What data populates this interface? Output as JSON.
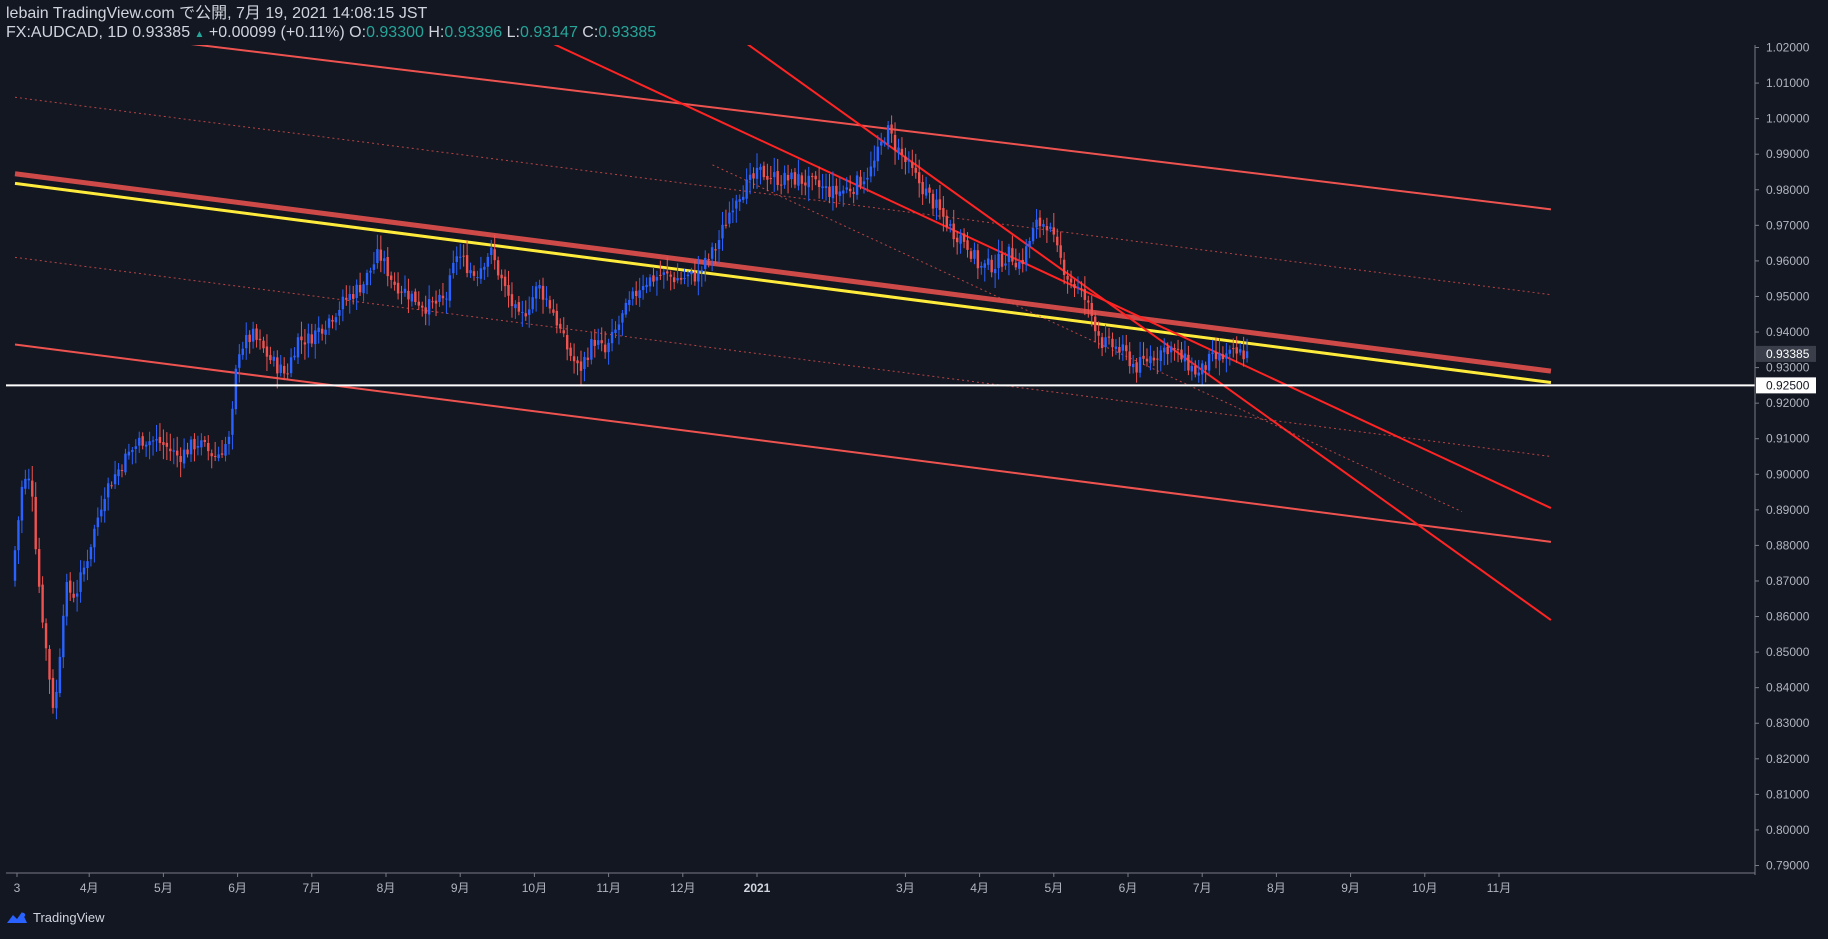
{
  "header": {
    "line1": "lebain TradingView.com で公開, 7月 19, 2021 14:08:15 JST",
    "symbol": "FX:AUDCAD, 1D",
    "last": "0.93385",
    "change_arrow": "▲",
    "change": "+0.00099 (+0.11%)",
    "o_label": "O:",
    "o": "0.93300",
    "h_label": "H:",
    "h": "0.93396",
    "l_label": "L:",
    "l": "0.93147",
    "c_label": "C:",
    "c": "0.93385"
  },
  "footer": {
    "brand": "TradingView",
    "logo_icon": "tradingview-logo-icon"
  },
  "colors": {
    "background": "#131722",
    "up": "#2962ff",
    "down": "#ef5350",
    "trend": "#ef5350",
    "channel": "#ff2424",
    "yellow": "#ffeb3b",
    "white": "#ffffff",
    "axis": "#787b86"
  },
  "chart_data": {
    "type": "candlestick",
    "symbol": "FX:AUDCAD",
    "timeframe": "1D",
    "ylim": [
      0.785,
      1.0235
    ],
    "yticks": [
      "1.02000",
      "1.01000",
      "1.00000",
      "0.99000",
      "0.98000",
      "0.97000",
      "0.96000",
      "0.95000",
      "0.94000",
      "0.93000",
      "0.92000",
      "0.91000",
      "0.90000",
      "0.89000",
      "0.88000",
      "0.87000",
      "0.86000",
      "0.85000",
      "0.84000",
      "0.83000",
      "0.82000",
      "0.81000",
      "0.80000",
      "0.79000"
    ],
    "xticks": [
      {
        "label": "3",
        "m": 0
      },
      {
        "label": "4月",
        "m": 1
      },
      {
        "label": "5月",
        "m": 2
      },
      {
        "label": "6月",
        "m": 3
      },
      {
        "label": "7月",
        "m": 4
      },
      {
        "label": "8月",
        "m": 5
      },
      {
        "label": "9月",
        "m": 6
      },
      {
        "label": "10月",
        "m": 7
      },
      {
        "label": "11月",
        "m": 8
      },
      {
        "label": "12月",
        "m": 9
      },
      {
        "label": "2021",
        "m": 10,
        "bold": true
      },
      {
        "label": "3月",
        "m": 12
      },
      {
        "label": "4月",
        "m": 13
      },
      {
        "label": "5月",
        "m": 14
      },
      {
        "label": "6月",
        "m": 15
      },
      {
        "label": "7月",
        "m": 16
      },
      {
        "label": "8月",
        "m": 17
      },
      {
        "label": "9月",
        "m": 18
      },
      {
        "label": "10月",
        "m": 19
      },
      {
        "label": "11月",
        "m": 20
      }
    ],
    "price_labels": [
      {
        "value": 0.93385,
        "text": "0.93385",
        "style": "current"
      },
      {
        "value": 0.925,
        "text": "0.92500",
        "style": "white"
      }
    ],
    "horizontal_lines": [
      {
        "price": 0.925,
        "color": "#ffffff",
        "width": 2
      }
    ],
    "trend_lines": [
      {
        "name": "trend-upper",
        "p1": [
          -0.2,
          1.0275
        ],
        "p2": [
          20.7,
          0.9745
        ],
        "color": "#ef5350",
        "width": 2,
        "dash": ""
      },
      {
        "name": "trend-main-red",
        "p1": [
          0,
          0.9845
        ],
        "p2": [
          20.7,
          0.929
        ],
        "color": "#ef5350",
        "width": 5,
        "dash": ""
      },
      {
        "name": "trend-yellow",
        "p1": [
          0,
          0.9818
        ],
        "p2": [
          20.7,
          0.9258
        ],
        "color": "#ffeb3b",
        "width": 3,
        "dash": ""
      },
      {
        "name": "trend-lower",
        "p1": [
          0,
          0.9365
        ],
        "p2": [
          20.7,
          0.881
        ],
        "color": "#ef5350",
        "width": 2,
        "dash": ""
      },
      {
        "name": "trend-dot-top",
        "p1": [
          0,
          1.006
        ],
        "p2": [
          20.7,
          0.9505
        ],
        "color": "#ef5350",
        "width": 1,
        "dash": "2,3"
      },
      {
        "name": "trend-dot-mid",
        "p1": [
          0,
          0.961
        ],
        "p2": [
          20.7,
          0.905
        ],
        "color": "#ef5350",
        "width": 1,
        "dash": "2,3"
      },
      {
        "name": "channel-upper",
        "p1": [
          7.0,
          1.0235
        ],
        "p2": [
          20.7,
          0.8905
        ],
        "color": "#ff2424",
        "width": 2,
        "dash": ""
      },
      {
        "name": "channel-lower",
        "p1": [
          9.7,
          1.0235
        ],
        "p2": [
          20.7,
          0.859
        ],
        "color": "#ff2424",
        "width": 2,
        "dash": ""
      },
      {
        "name": "channel-mid-dot",
        "p1": [
          9.4,
          0.987
        ],
        "p2": [
          19.5,
          0.8895
        ],
        "color": "#ef5350",
        "width": 1,
        "dash": "2,3"
      }
    ],
    "price_points": [
      [
        0,
        0.87
      ],
      [
        0.15,
        0.898
      ],
      [
        0.27,
        0.898
      ],
      [
        0.35,
        0.873
      ],
      [
        0.48,
        0.848
      ],
      [
        0.58,
        0.832
      ],
      [
        0.72,
        0.868
      ],
      [
        0.86,
        0.866
      ],
      [
        1.0,
        0.875
      ],
      [
        1.25,
        0.895
      ],
      [
        1.55,
        0.905
      ],
      [
        1.75,
        0.91
      ],
      [
        2.0,
        0.909
      ],
      [
        2.25,
        0.905
      ],
      [
        2.5,
        0.909
      ],
      [
        2.75,
        0.905
      ],
      [
        2.95,
        0.91
      ],
      [
        3.05,
        0.935
      ],
      [
        3.25,
        0.939
      ],
      [
        3.5,
        0.932
      ],
      [
        3.7,
        0.928
      ],
      [
        3.85,
        0.938
      ],
      [
        4.0,
        0.938
      ],
      [
        4.25,
        0.943
      ],
      [
        4.5,
        0.949
      ],
      [
        4.75,
        0.954
      ],
      [
        4.95,
        0.962
      ],
      [
        5.15,
        0.954
      ],
      [
        5.4,
        0.95
      ],
      [
        5.6,
        0.947
      ],
      [
        5.85,
        0.949
      ],
      [
        6.0,
        0.962
      ],
      [
        6.25,
        0.956
      ],
      [
        6.45,
        0.963
      ],
      [
        6.65,
        0.952
      ],
      [
        6.85,
        0.943
      ],
      [
        7.1,
        0.953
      ],
      [
        7.3,
        0.946
      ],
      [
        7.45,
        0.937
      ],
      [
        7.65,
        0.929
      ],
      [
        7.85,
        0.938
      ],
      [
        8.0,
        0.934
      ],
      [
        8.25,
        0.945
      ],
      [
        8.5,
        0.954
      ],
      [
        8.75,
        0.956
      ],
      [
        9.0,
        0.955
      ],
      [
        9.25,
        0.956
      ],
      [
        9.5,
        0.964
      ],
      [
        9.75,
        0.978
      ],
      [
        10.0,
        0.983
      ],
      [
        10.1,
        0.985
      ],
      [
        10.35,
        0.983
      ],
      [
        10.6,
        0.983
      ],
      [
        10.85,
        0.981
      ],
      [
        11.1,
        0.979
      ],
      [
        11.35,
        0.981
      ],
      [
        11.6,
        0.986
      ],
      [
        11.8,
        0.997
      ],
      [
        11.9,
        0.993
      ],
      [
        12.1,
        0.986
      ],
      [
        12.3,
        0.98
      ],
      [
        12.5,
        0.974
      ],
      [
        12.7,
        0.968
      ],
      [
        12.85,
        0.966
      ],
      [
        13.05,
        0.958
      ],
      [
        13.25,
        0.959
      ],
      [
        13.45,
        0.962
      ],
      [
        13.6,
        0.959
      ],
      [
        13.8,
        0.97
      ],
      [
        13.95,
        0.971
      ],
      [
        14.1,
        0.962
      ],
      [
        14.25,
        0.955
      ],
      [
        14.45,
        0.95
      ],
      [
        14.55,
        0.945
      ],
      [
        14.7,
        0.937
      ],
      [
        14.85,
        0.936
      ],
      [
        15.0,
        0.934
      ],
      [
        15.15,
        0.93
      ],
      [
        15.35,
        0.933
      ],
      [
        15.6,
        0.936
      ],
      [
        15.8,
        0.932
      ],
      [
        16.0,
        0.928
      ],
      [
        16.15,
        0.932
      ],
      [
        16.35,
        0.933
      ],
      [
        16.55,
        0.934
      ],
      [
        16.62,
        0.93385
      ]
    ]
  }
}
